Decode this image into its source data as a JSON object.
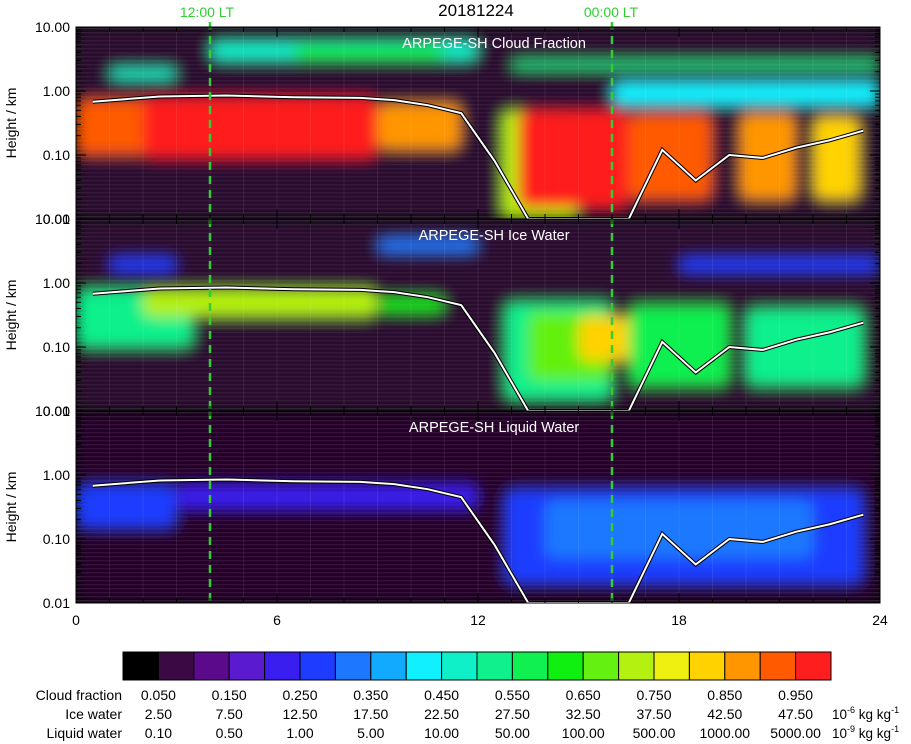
{
  "chart_data": {
    "type": "heatmap",
    "date": "20181224",
    "markers": [
      {
        "label": "12:00 LT",
        "x": 4.0,
        "color": "#33cc33"
      },
      {
        "label": "00:00 LT",
        "x": 16.0,
        "color": "#33cc33"
      }
    ],
    "x_ticks": [
      0,
      6,
      12,
      18,
      24
    ],
    "xlim": [
      0,
      24
    ],
    "ylim": [
      0.01,
      10
    ],
    "yscale": "log",
    "ylabel": "Height / km",
    "y_ticks": [
      "0.01",
      "0.10",
      "1.00",
      "10.00"
    ],
    "boundary_layer_top": {
      "x": [
        0.5,
        2.5,
        4.5,
        6.5,
        8.5,
        9.5,
        10.5,
        11.5,
        12.5,
        13.5,
        16.5,
        17.5,
        18.5,
        19.5,
        20.5,
        21.5,
        22.5,
        23.5
      ],
      "y": [
        0.68,
        0.82,
        0.85,
        0.8,
        0.78,
        0.72,
        0.6,
        0.45,
        0.08,
        0.01,
        0.01,
        0.12,
        0.04,
        0.1,
        0.09,
        0.13,
        0.17,
        0.24
      ]
    },
    "panels": [
      {
        "title": "ARPEGE-SH Cloud Fraction",
        "field": "cloud_fraction"
      },
      {
        "title": "ARPEGE-SH Ice Water",
        "field": "ice_water"
      },
      {
        "title": "ARPEGE-SH Liquid Water",
        "field": "liquid_water"
      }
    ],
    "colorbar": {
      "colors": [
        "#000000",
        "#3b0a45",
        "#5a0a8a",
        "#5a1ad0",
        "#3a1ef0",
        "#1e3cff",
        "#1e78ff",
        "#12aaff",
        "#10f0ff",
        "#10f0c8",
        "#10f08c",
        "#10f050",
        "#10f010",
        "#64f010",
        "#b4f010",
        "#f0f010",
        "#ffd200",
        "#ff9600",
        "#ff5a00",
        "#ff1e1e"
      ],
      "rows": [
        {
          "label": "Cloud fraction",
          "unit_base": "",
          "unit_exp": "",
          "values": [
            "0.050",
            "0.150",
            "0.250",
            "0.350",
            "0.450",
            "0.550",
            "0.650",
            "0.750",
            "0.850",
            "0.950"
          ]
        },
        {
          "label": "Ice water",
          "unit_base": "10",
          "unit_exp": "-6",
          "unit_suffix": "kg kg",
          "unit_suffix_exp": "-1",
          "values": [
            "2.50",
            "7.50",
            "12.50",
            "17.50",
            "22.50",
            "27.50",
            "32.50",
            "37.50",
            "42.50",
            "47.50"
          ]
        },
        {
          "label": "Liquid water",
          "unit_base": "10",
          "unit_exp": "-9",
          "unit_suffix": "kg kg",
          "unit_suffix_exp": "-1",
          "values": [
            "0.10",
            "0.50",
            "1.00",
            "5.00",
            "10.00",
            "50.00",
            "100.00",
            "500.00",
            "1000.00",
            "5000.00"
          ]
        }
      ]
    },
    "fields": {
      "cloud_fraction": [
        [
          [
            0,
            24
          ],
          [
            0.01,
            10
          ],
          1,
          0.7
        ],
        [
          [
            0,
            3.5
          ],
          [
            0.1,
            0.75
          ],
          18,
          1
        ],
        [
          [
            2,
            9
          ],
          [
            0.09,
            0.8
          ],
          19,
          1
        ],
        [
          [
            9,
            11.5
          ],
          [
            0.12,
            0.65
          ],
          17,
          1
        ],
        [
          [
            12.7,
            15
          ],
          [
            0.01,
            0.5
          ],
          14,
          1
        ],
        [
          [
            13.2,
            16.5
          ],
          [
            0.015,
            0.5
          ],
          19,
          1
        ],
        [
          [
            16.5,
            19
          ],
          [
            0.02,
            0.45
          ],
          18,
          1
        ],
        [
          [
            19.8,
            21.5
          ],
          [
            0.02,
            0.45
          ],
          17,
          1
        ],
        [
          [
            22,
            23.4
          ],
          [
            0.02,
            0.4
          ],
          16,
          1
        ],
        [
          [
            4,
            12
          ],
          [
            3,
            6
          ],
          9,
          1
        ],
        [
          [
            6.5,
            11
          ],
          [
            3.2,
            5
          ],
          12,
          1
        ],
        [
          [
            13,
            24
          ],
          [
            2.2,
            3
          ],
          10,
          1
        ],
        [
          [
            1,
            3
          ],
          [
            1.5,
            2.3
          ],
          9,
          1
        ],
        [
          [
            16,
            24
          ],
          [
            0.6,
            1.4
          ],
          8,
          1
        ]
      ],
      "ice_water": [
        [
          [
            0,
            24
          ],
          [
            0.01,
            10
          ],
          1,
          0.7
        ],
        [
          [
            0,
            3.5
          ],
          [
            0.1,
            0.8
          ],
          10,
          1
        ],
        [
          [
            2,
            9
          ],
          [
            0.3,
            0.8
          ],
          14,
          1
        ],
        [
          [
            9,
            11
          ],
          [
            0.35,
            0.6
          ],
          12,
          1
        ],
        [
          [
            12.8,
            16
          ],
          [
            0.015,
            0.5
          ],
          10,
          1
        ],
        [
          [
            13.5,
            16
          ],
          [
            0.03,
            0.35
          ],
          13,
          1
        ],
        [
          [
            15,
            16.8
          ],
          [
            0.06,
            0.3
          ],
          16,
          1
        ],
        [
          [
            16.5,
            19.5
          ],
          [
            0.025,
            0.45
          ],
          11,
          1
        ],
        [
          [
            20,
            23.5
          ],
          [
            0.025,
            0.4
          ],
          10,
          1
        ],
        [
          [
            9,
            12
          ],
          [
            3,
            5
          ],
          6,
          1
        ],
        [
          [
            1,
            3
          ],
          [
            1.5,
            2.5
          ],
          5,
          1
        ],
        [
          [
            18,
            24
          ],
          [
            1.5,
            2.5
          ],
          5,
          1
        ]
      ],
      "liquid_water": [
        [
          [
            0,
            24
          ],
          [
            0.01,
            10
          ],
          1,
          0.6
        ],
        [
          [
            0,
            3
          ],
          [
            0.15,
            0.7
          ],
          5,
          1
        ],
        [
          [
            3,
            12
          ],
          [
            0.3,
            0.7
          ],
          4,
          1
        ],
        [
          [
            12.8,
            23.5
          ],
          [
            0.02,
            0.6
          ],
          5,
          1
        ],
        [
          [
            14,
            22
          ],
          [
            0.05,
            0.4
          ],
          6,
          1
        ]
      ]
    }
  }
}
